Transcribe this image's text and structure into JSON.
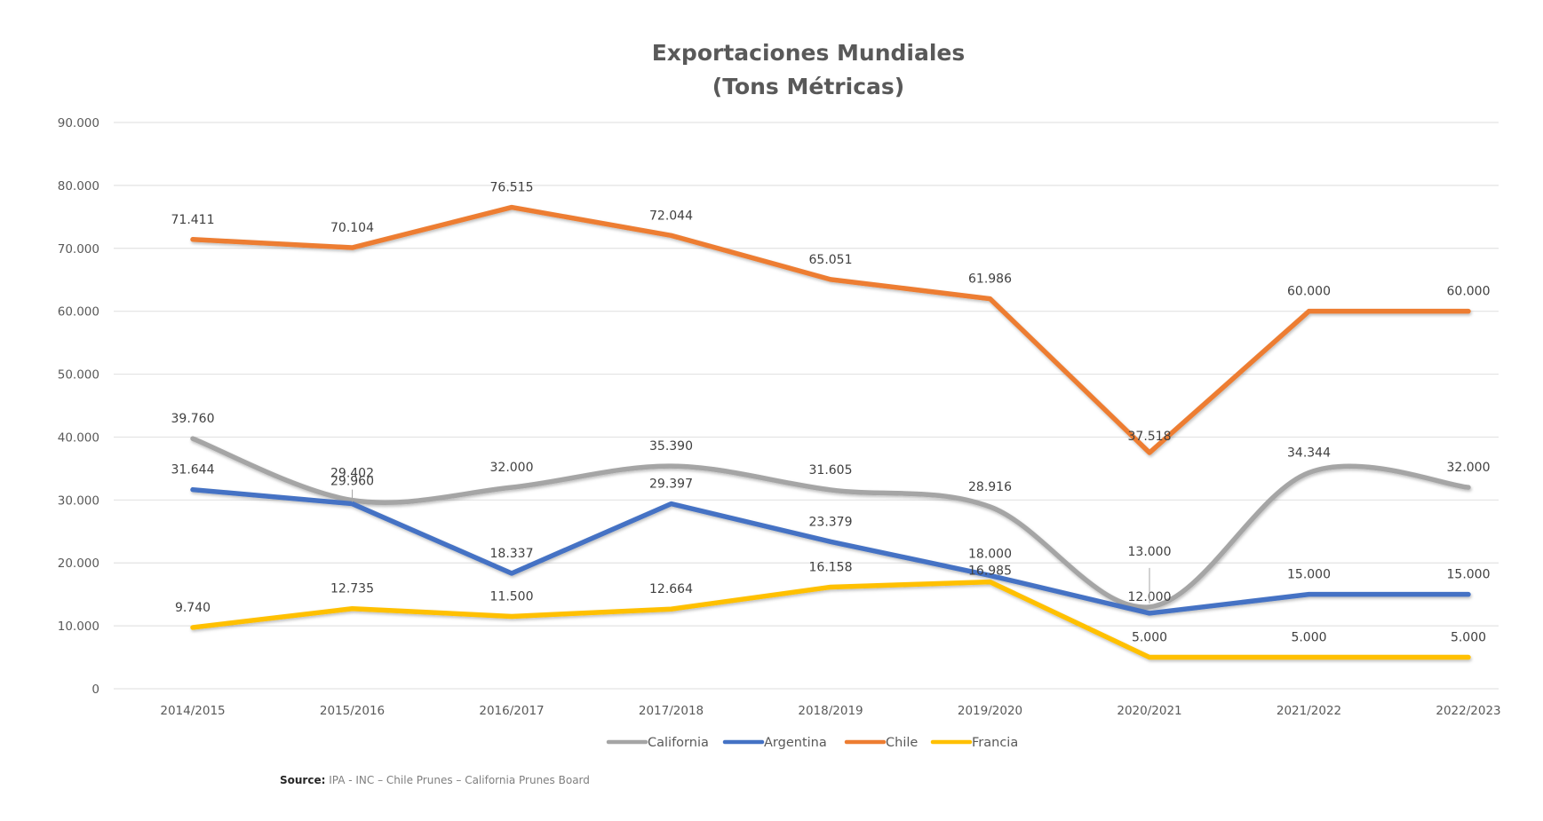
{
  "chart_data": {
    "type": "line",
    "title": [
      "Exportaciones Mundiales",
      "(Tons Métricas)"
    ],
    "xlabel": "",
    "ylabel": "",
    "categories": [
      "2014/2015",
      "2015/2016",
      "2016/2017",
      "2017/2018",
      "2018/2019",
      "2019/2020",
      "2020/2021",
      "2021/2022",
      "2022/2023"
    ],
    "ylim": [
      0,
      90000
    ],
    "yticks": [
      0,
      10000,
      20000,
      30000,
      40000,
      50000,
      60000,
      70000,
      80000,
      90000
    ],
    "ytick_labels": [
      "0",
      "10.000",
      "20.000",
      "30.000",
      "40.000",
      "50.000",
      "60.000",
      "70.000",
      "80.000",
      "90.000"
    ],
    "grid": true,
    "legend_position": "bottom",
    "series": [
      {
        "name": "California",
        "color": "#a5a5a5",
        "smooth": true,
        "values": [
          39760,
          29960,
          32000,
          35390,
          31605,
          28916,
          13000,
          34344,
          32000
        ],
        "labels": [
          "39.760",
          "29.960",
          "32.000",
          "35.390",
          "31.605",
          "28.916",
          "13.000",
          "34.344",
          "32.000"
        ]
      },
      {
        "name": "Argentina",
        "color": "#4472c4",
        "smooth": false,
        "values": [
          31644,
          29402,
          18337,
          29397,
          23379,
          18000,
          12000,
          15000,
          15000
        ],
        "labels": [
          "31.644",
          "29.402",
          "18.337",
          "29.397",
          "23.379",
          "18.000",
          "12.000",
          "15.000",
          "15.000"
        ]
      },
      {
        "name": "Chile",
        "color": "#ed7d31",
        "smooth": false,
        "values": [
          71411,
          70104,
          76515,
          72044,
          65051,
          61986,
          37518,
          60000,
          60000
        ],
        "labels": [
          "71.411",
          "70.104",
          "76.515",
          "72.044",
          "65.051",
          "61.986",
          "37.518",
          "60.000",
          "60.000"
        ]
      },
      {
        "name": "Francia",
        "color": "#ffc000",
        "smooth": false,
        "values": [
          9740,
          12735,
          11500,
          12664,
          16158,
          16985,
          5000,
          5000,
          5000
        ],
        "labels": [
          "9.740",
          "12.735",
          "11.500",
          "12.664",
          "16.158",
          "16.985",
          "5.000",
          "5.000",
          "5.000"
        ]
      }
    ]
  },
  "source": {
    "label": "Source:",
    "text": " IPA  - INC – Chile Prunes – California Prunes Board"
  }
}
